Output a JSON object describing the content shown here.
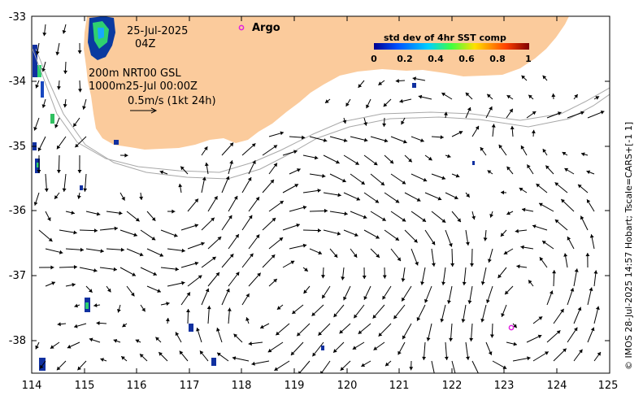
{
  "date_label": "25-Jul-2025",
  "time_label": "04Z",
  "argo_label": "Argo",
  "colorbar": {
    "title": "std dev of 4hr SST comp",
    "ticks": [
      "0",
      "0.2",
      "0.4",
      "0.6",
      "0.8",
      "1"
    ],
    "colors": [
      "#00008f",
      "#0050ff",
      "#00d0ff",
      "#40ff40",
      "#ffe000",
      "#ff4000",
      "#800000"
    ]
  },
  "info": {
    "line1": "200m  NRT00 GSL",
    "line2": "1000m25-Jul 00:00Z",
    "scale_label": "0.5m/s (1kt 24h)"
  },
  "axes": {
    "x_ticks": [
      "114",
      "115",
      "116",
      "117",
      "118",
      "119",
      "120",
      "121",
      "122",
      "123",
      "124",
      "125"
    ],
    "y_ticks": [
      "-33",
      "-34",
      "-35",
      "-36",
      "-37",
      "-38"
    ]
  },
  "credit": "© IMOS 28-Jul-2025 14:57 Hobart; Tscale=CARS+[-1 1]",
  "colors": {
    "land": "#fbcb9c",
    "argo": "#e020e0",
    "contour": "#a8a8a8",
    "arrow": "#000000"
  }
}
